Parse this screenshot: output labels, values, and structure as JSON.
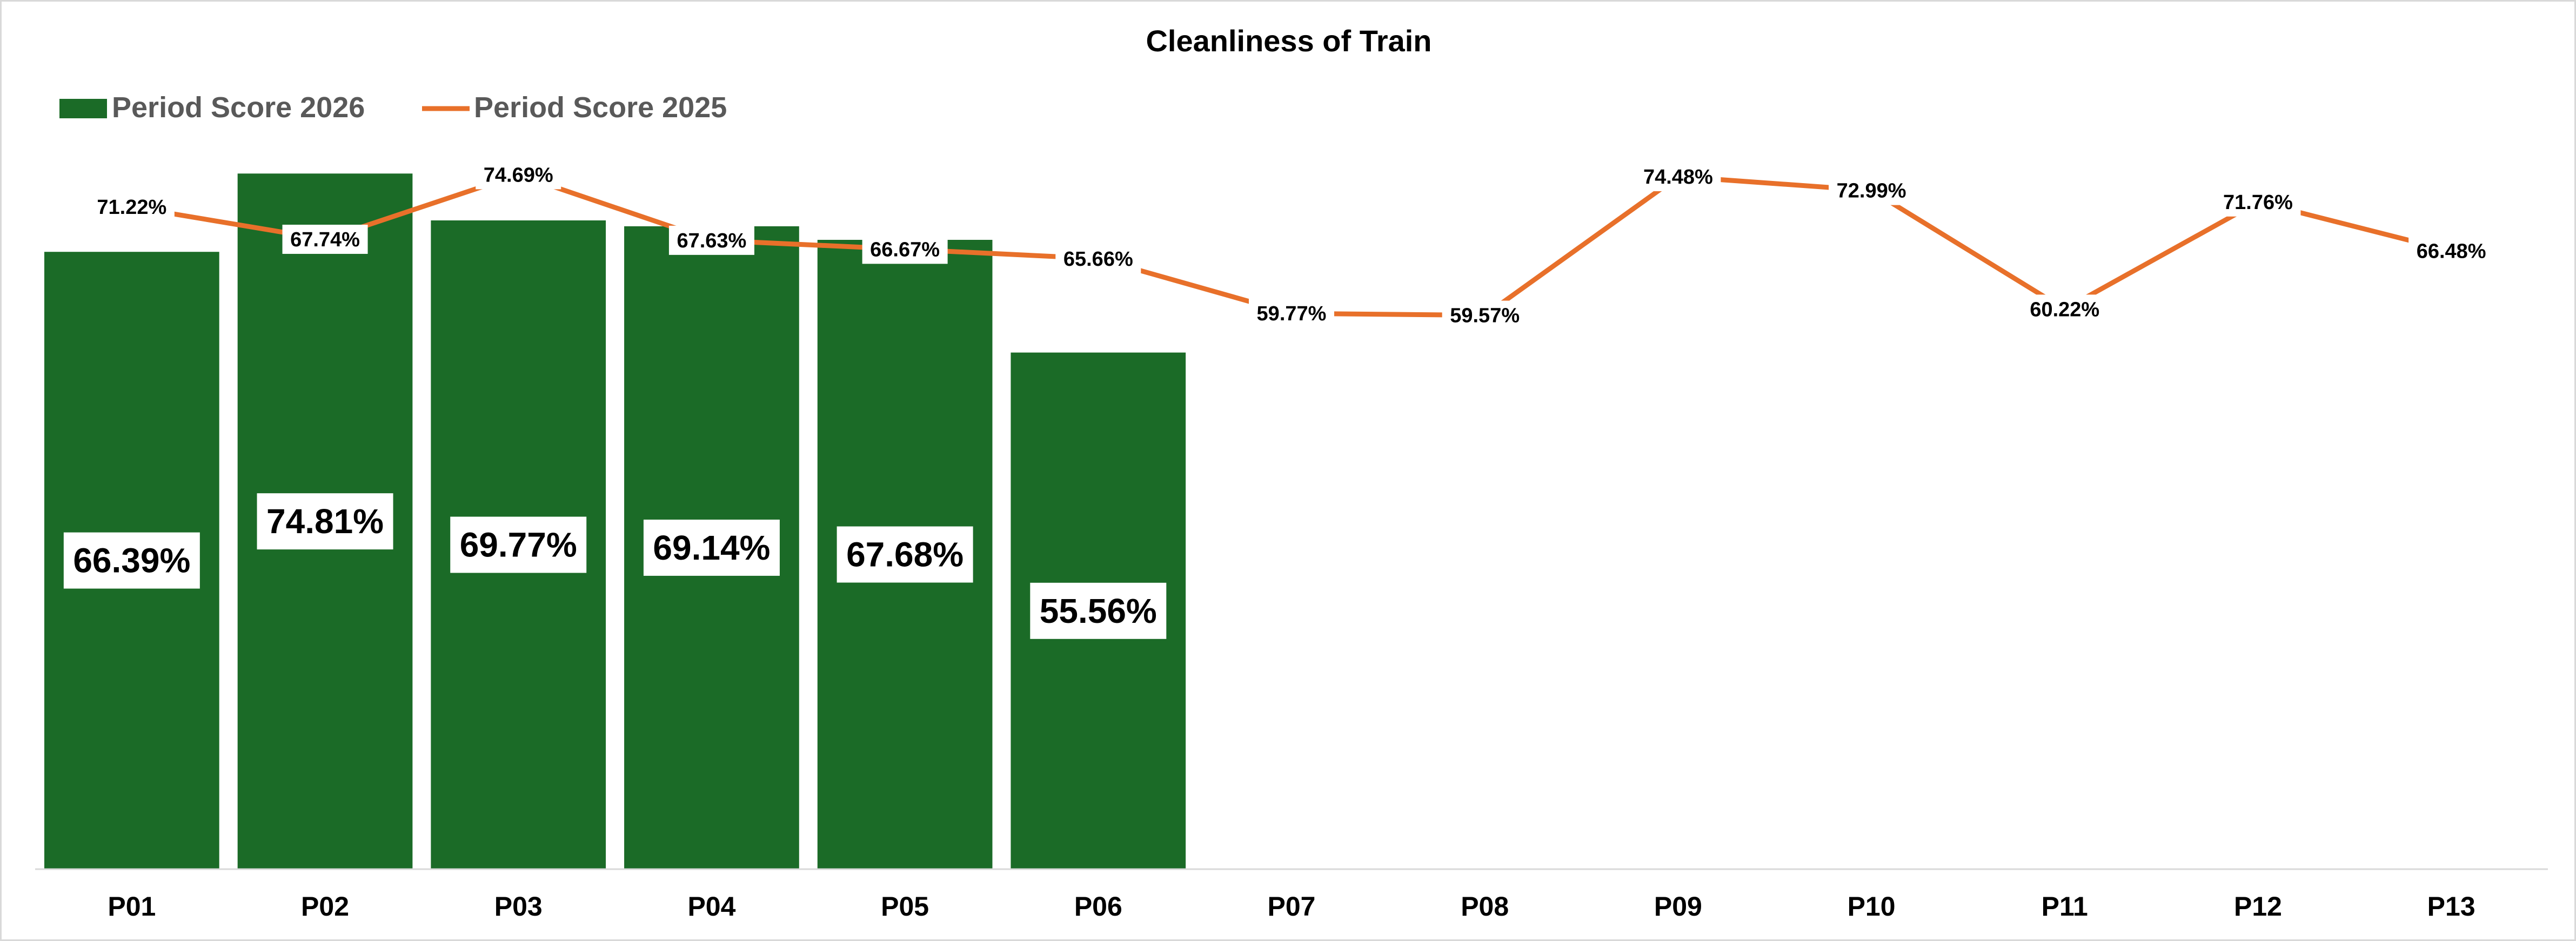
{
  "chart_data": {
    "type": "bar",
    "title": "Cleanliness of Train",
    "categories": [
      "P01",
      "P02",
      "P03",
      "P04",
      "P05",
      "P06",
      "P07",
      "P08",
      "P09",
      "P10",
      "P11",
      "P12",
      "P13"
    ],
    "series": [
      {
        "name": "Period Score 2026",
        "type": "bar",
        "color": "#1b6b27",
        "values": [
          66.39,
          74.81,
          69.77,
          69.14,
          67.68,
          55.56,
          null,
          null,
          null,
          null,
          null,
          null,
          null
        ],
        "labels": [
          "66.39%",
          "74.81%",
          "69.77%",
          "69.14%",
          "67.68%",
          "55.56%"
        ]
      },
      {
        "name": "Period Score 2025",
        "type": "line",
        "color": "#e8702a",
        "values": [
          71.22,
          67.74,
          74.69,
          67.63,
          66.67,
          65.66,
          59.77,
          59.57,
          74.48,
          72.99,
          60.22,
          71.76,
          66.48
        ],
        "labels": [
          "71.22%",
          "67.74%",
          "74.69%",
          "67.63%",
          "66.67%",
          "65.66%",
          "59.77%",
          "59.57%",
          "74.48%",
          "72.99%",
          "60.22%",
          "71.76%",
          "66.48%"
        ]
      }
    ],
    "ylim": [
      0,
      75
    ],
    "grid": false,
    "legend": "top-left",
    "xlabel": "",
    "ylabel": ""
  }
}
